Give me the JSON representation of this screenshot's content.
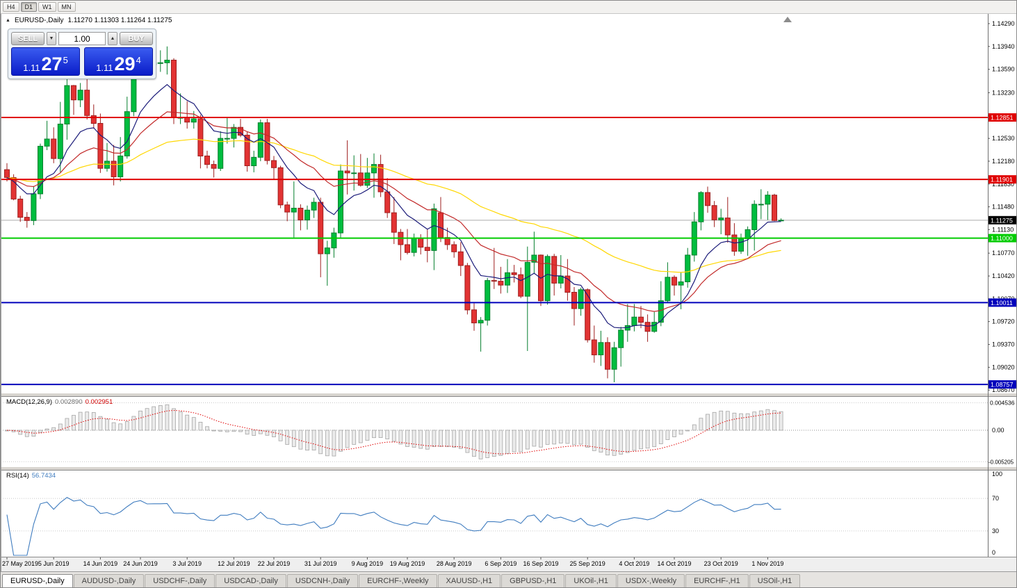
{
  "toolbar": {
    "timeframes": [
      {
        "label": "H4",
        "active": false
      },
      {
        "label": "D1",
        "active": true
      },
      {
        "label": "W1",
        "active": false
      },
      {
        "label": "MN",
        "active": false
      }
    ]
  },
  "overlay": {
    "collapse_glyph": "▲",
    "title": "EURUSD-,Daily",
    "ohlc": "1.11270 1.11303 1.11264 1.11275"
  },
  "trade_panel": {
    "sell_label": "SELL",
    "buy_label": "BUY",
    "volume": "1.00",
    "volume_down_glyph": "▼",
    "volume_up_glyph": "▲",
    "bid": {
      "prefix": "1.11",
      "pips": "27",
      "frac": "5"
    },
    "ask": {
      "prefix": "1.11",
      "pips": "29",
      "frac": "4"
    }
  },
  "chart_data": {
    "type": "candlestick",
    "symbol": "EURUSD-",
    "timeframe": "Daily",
    "ohlc_current": {
      "open": "1.11270",
      "high": "1.11303",
      "low": "1.11264",
      "close": "1.11275"
    },
    "y_axis": {
      "ticks": [
        "1.14290",
        "1.13940",
        "1.13590",
        "1.13230",
        "1.12880",
        "1.12530",
        "1.12180",
        "1.11830",
        "1.11480",
        "1.11130",
        "1.10770",
        "1.10420",
        "1.10070",
        "1.09720",
        "1.09370",
        "1.09020",
        "1.08670"
      ]
    },
    "x_axis": {
      "labels": [
        {
          "i": 0,
          "t": "27 May 2019"
        },
        {
          "i": 7,
          "t": "5 Jun 2019"
        },
        {
          "i": 14,
          "t": "14 Jun 2019"
        },
        {
          "i": 20,
          "t": "24 Jun 2019"
        },
        {
          "i": 27,
          "t": "3 Jul 2019"
        },
        {
          "i": 34,
          "t": "12 Jul 2019"
        },
        {
          "i": 40,
          "t": "22 Jul 2019"
        },
        {
          "i": 47,
          "t": "31 Jul 2019"
        },
        {
          "i": 54,
          "t": "9 Aug 2019"
        },
        {
          "i": 60,
          "t": "19 Aug 2019"
        },
        {
          "i": 67,
          "t": "28 Aug 2019"
        },
        {
          "i": 74,
          "t": "6 Sep 2019"
        },
        {
          "i": 80,
          "t": "16 Sep 2019"
        },
        {
          "i": 87,
          "t": "25 Sep 2019"
        },
        {
          "i": 94,
          "t": "4 Oct 2019"
        },
        {
          "i": 100,
          "t": "14 Oct 2019"
        },
        {
          "i": 107,
          "t": "23 Oct 2019"
        },
        {
          "i": 114,
          "t": "1 Nov 2019"
        }
      ]
    },
    "hlines": [
      {
        "price": 1.12851,
        "label": "1.12851",
        "color": "#e00000",
        "width": 2
      },
      {
        "price": 1.11901,
        "label": "1.11901",
        "color": "#e00000",
        "width": 2
      },
      {
        "price": 1.11,
        "label": "1.11000",
        "color": "#00cc00",
        "width": 2
      },
      {
        "price": 1.10011,
        "label": "1.10011",
        "color": "#0000bb",
        "width": 2
      },
      {
        "price": 1.08757,
        "label": "1.08757",
        "color": "#0000bb",
        "width": 2
      }
    ],
    "bid_line": {
      "price": 1.11275,
      "label": "1.11275",
      "line_color": "#ababab",
      "badge_bg": "#000000",
      "badge_fg": "#ffffff"
    },
    "candle_colors": {
      "up_fill": "#00bd3f",
      "up_stroke": "#057f2d",
      "down_fill": "#e23333",
      "down_stroke": "#9e1f1f"
    },
    "moving_averages": [
      {
        "period": 55,
        "color": "#ffd700",
        "name": "ma-slow-yellow"
      },
      {
        "period": 22,
        "color": "#c22a2a",
        "name": "ma-mid-red"
      },
      {
        "period": 10,
        "color": "#1c1c7a",
        "name": "ma-fast-navy"
      }
    ],
    "candles": [
      [
        1.1205,
        1.1215,
        1.1187,
        1.1193
      ],
      [
        1.1193,
        1.1198,
        1.1158,
        1.116
      ],
      [
        1.116,
        1.1165,
        1.1125,
        1.1132
      ],
      [
        1.1132,
        1.114,
        1.1116,
        1.1127
      ],
      [
        1.1127,
        1.118,
        1.112,
        1.1168
      ],
      [
        1.1168,
        1.1245,
        1.116,
        1.1241
      ],
      [
        1.1241,
        1.128,
        1.1235,
        1.1252
      ],
      [
        1.1252,
        1.127,
        1.1215,
        1.1222
      ],
      [
        1.1222,
        1.1309,
        1.1201,
        1.1275
      ],
      [
        1.1275,
        1.1348,
        1.1251,
        1.1334
      ],
      [
        1.1334,
        1.1335,
        1.1289,
        1.1312
      ],
      [
        1.1312,
        1.1338,
        1.1301,
        1.1327
      ],
      [
        1.1327,
        1.1344,
        1.1282,
        1.1288
      ],
      [
        1.1288,
        1.1305,
        1.1268,
        1.1276
      ],
      [
        1.1276,
        1.1291,
        1.12,
        1.1207
      ],
      [
        1.1207,
        1.1246,
        1.1202,
        1.1218
      ],
      [
        1.1218,
        1.1243,
        1.1181,
        1.1194
      ],
      [
        1.1194,
        1.1255,
        1.1187,
        1.1226
      ],
      [
        1.1226,
        1.1317,
        1.1222,
        1.1294
      ],
      [
        1.1294,
        1.1378,
        1.1287,
        1.1369
      ],
      [
        1.1369,
        1.14,
        1.1366,
        1.1398
      ],
      [
        1.1398,
        1.1403,
        1.1344,
        1.1366
      ],
      [
        1.1366,
        1.1391,
        1.1348,
        1.1369
      ],
      [
        1.1369,
        1.1388,
        1.1355,
        1.1369
      ],
      [
        1.1369,
        1.1394,
        1.1351,
        1.1373
      ],
      [
        1.1373,
        1.1376,
        1.1275,
        1.1285
      ],
      [
        1.1285,
        1.1322,
        1.1275,
        1.1285
      ],
      [
        1.1285,
        1.131,
        1.1268,
        1.1278
      ],
      [
        1.1278,
        1.1295,
        1.1268,
        1.1283
      ],
      [
        1.1283,
        1.1289,
        1.1207,
        1.1226
      ],
      [
        1.1226,
        1.1234,
        1.1207,
        1.1213
      ],
      [
        1.1213,
        1.1219,
        1.1193,
        1.1207
      ],
      [
        1.1207,
        1.1264,
        1.1203,
        1.1253
      ],
      [
        1.1253,
        1.1286,
        1.1245,
        1.1253
      ],
      [
        1.1253,
        1.1275,
        1.1239,
        1.127
      ],
      [
        1.127,
        1.1283,
        1.1255,
        1.1258
      ],
      [
        1.1258,
        1.1263,
        1.1202,
        1.1211
      ],
      [
        1.1211,
        1.1234,
        1.1201,
        1.1224
      ],
      [
        1.1224,
        1.1282,
        1.1218,
        1.1277
      ],
      [
        1.1277,
        1.1283,
        1.1213,
        1.1219
      ],
      [
        1.1219,
        1.1226,
        1.119,
        1.1208
      ],
      [
        1.1208,
        1.1211,
        1.1146,
        1.1151
      ],
      [
        1.1151,
        1.1156,
        1.1126,
        1.114
      ],
      [
        1.114,
        1.1187,
        1.1101,
        1.1146
      ],
      [
        1.1146,
        1.1152,
        1.1112,
        1.1128
      ],
      [
        1.1128,
        1.115,
        1.1113,
        1.1143
      ],
      [
        1.1143,
        1.1162,
        1.1131,
        1.1155
      ],
      [
        1.1155,
        1.1162,
        1.104,
        1.1076
      ],
      [
        1.1076,
        1.1096,
        1.1027,
        1.1085
      ],
      [
        1.1085,
        1.1116,
        1.107,
        1.1108
      ],
      [
        1.1108,
        1.1213,
        1.1101,
        1.1203
      ],
      [
        1.1203,
        1.125,
        1.1167,
        1.12
      ],
      [
        1.12,
        1.1227,
        1.1173,
        1.12
      ],
      [
        1.12,
        1.1229,
        1.1179,
        1.1181
      ],
      [
        1.1181,
        1.1223,
        1.1177,
        1.12
      ],
      [
        1.12,
        1.123,
        1.1162,
        1.1213
      ],
      [
        1.1213,
        1.1228,
        1.1163,
        1.1171
      ],
      [
        1.1171,
        1.1192,
        1.1131,
        1.1139
      ],
      [
        1.1139,
        1.1163,
        1.1091,
        1.1109
      ],
      [
        1.1109,
        1.1114,
        1.1066,
        1.109
      ],
      [
        1.109,
        1.1114,
        1.1075,
        1.1078
      ],
      [
        1.1078,
        1.1107,
        1.1072,
        1.11
      ],
      [
        1.11,
        1.1106,
        1.1075,
        1.1086
      ],
      [
        1.1086,
        1.1113,
        1.1063,
        1.1081
      ],
      [
        1.1081,
        1.1153,
        1.1051,
        1.1145
      ],
      [
        1.1139,
        1.1163,
        1.1094,
        1.1101
      ],
      [
        1.1101,
        1.1116,
        1.1082,
        1.109
      ],
      [
        1.109,
        1.1095,
        1.107,
        1.1079
      ],
      [
        1.1079,
        1.1094,
        1.1042,
        1.1058
      ],
      [
        1.1058,
        1.1062,
        1.0983,
        1.099
      ],
      [
        1.099,
        1.1,
        1.0958,
        1.097
      ],
      [
        1.097,
        1.0979,
        1.0926,
        1.0974
      ],
      [
        1.0974,
        1.1039,
        1.0966,
        1.1035
      ],
      [
        1.1035,
        1.1085,
        1.1022,
        1.1034
      ],
      [
        1.1034,
        1.1056,
        1.1015,
        1.1028
      ],
      [
        1.1028,
        1.1068,
        1.1016,
        1.1047
      ],
      [
        1.1047,
        1.1059,
        1.1032,
        1.1044
      ],
      [
        1.1044,
        1.1055,
        1.1008,
        1.1011
      ],
      [
        1.1011,
        1.1087,
        1.0927,
        1.1063
      ],
      [
        1.1063,
        1.111,
        1.1045,
        1.1074
      ],
      [
        1.1074,
        1.1075,
        1.0996,
        1.1004
      ],
      [
        1.1004,
        1.1075,
        1.0998,
        1.1072
      ],
      [
        1.1072,
        1.1076,
        1.1012,
        1.1031
      ],
      [
        1.1031,
        1.1074,
        1.1023,
        1.1042
      ],
      [
        1.1042,
        1.1068,
        1.1004,
        1.1017
      ],
      [
        1.1017,
        1.1025,
        1.0966,
        1.0992
      ],
      [
        1.0992,
        1.1024,
        1.0981,
        1.1021
      ],
      [
        1.1021,
        1.1023,
        1.094,
        1.0944
      ],
      [
        1.0944,
        1.0966,
        1.0909,
        1.0921
      ],
      [
        1.0921,
        1.0958,
        1.0904,
        1.094
      ],
      [
        1.094,
        1.0948,
        1.0885,
        1.0899
      ],
      [
        1.0899,
        1.0941,
        1.0879,
        1.0932
      ],
      [
        1.0932,
        1.0964,
        1.0903,
        1.0959
      ],
      [
        1.0959,
        1.0999,
        1.0941,
        1.0966
      ],
      [
        1.0966,
        1.0999,
        1.0957,
        1.0979
      ],
      [
        1.0979,
        1.0996,
        1.0962,
        1.0971
      ],
      [
        1.0971,
        1.0983,
        1.0941,
        1.0957
      ],
      [
        1.0957,
        1.0987,
        1.0955,
        1.0971
      ],
      [
        1.0971,
        1.1034,
        1.0965,
        1.1004
      ],
      [
        1.1004,
        1.1063,
        1.1002,
        1.104
      ],
      [
        1.104,
        1.1043,
        1.1012,
        1.1028
      ],
      [
        1.1028,
        1.1047,
        1.0991,
        1.1033
      ],
      [
        1.1033,
        1.1085,
        1.1024,
        1.1074
      ],
      [
        1.1074,
        1.114,
        1.1064,
        1.1125
      ],
      [
        1.1125,
        1.1172,
        1.1112,
        1.117
      ],
      [
        1.117,
        1.1179,
        1.1139,
        1.115
      ],
      [
        1.115,
        1.1157,
        1.1117,
        1.1128
      ],
      [
        1.1128,
        1.1145,
        1.1106,
        1.1131
      ],
      [
        1.1131,
        1.1163,
        1.1093,
        1.1105
      ],
      [
        1.1105,
        1.1123,
        1.1073,
        1.108
      ],
      [
        1.108,
        1.1107,
        1.1076,
        1.1099
      ],
      [
        1.1099,
        1.1118,
        1.1073,
        1.1113
      ],
      [
        1.1113,
        1.1158,
        1.1081,
        1.1152
      ],
      [
        1.1152,
        1.1175,
        1.1129,
        1.1152
      ],
      [
        1.1152,
        1.1172,
        1.1128,
        1.1166
      ],
      [
        1.1166,
        1.1168,
        1.1126,
        1.1127
      ],
      [
        1.1127,
        1.11303,
        1.11264,
        1.11275
      ]
    ],
    "macd": {
      "label": "MACD(12,26,9)",
      "value": "0.002890",
      "signal_value": "0.002951",
      "fast": 12,
      "slow": 26,
      "signal_period": 9,
      "scale_labels": [
        "0.004536",
        "0.00",
        "-0.005205"
      ],
      "scale_max": 0.004536,
      "scale_min": -0.005205,
      "hist_fill": "#ebebeb",
      "hist_stroke": "#a6a6a6",
      "signal_color": "#e00000"
    },
    "rsi": {
      "label": "RSI(14)",
      "value": "56.7434",
      "period": 14,
      "line_color": "#3f7cbf",
      "levels": [
        70,
        30
      ],
      "scale_labels": [
        "100",
        "70",
        "30",
        "0"
      ]
    }
  },
  "tabs": [
    {
      "label": "EURUSD-,Daily",
      "active": true
    },
    {
      "label": "AUDUSD-,Daily",
      "active": false
    },
    {
      "label": "USDCHF-,Daily",
      "active": false
    },
    {
      "label": "USDCAD-,Daily",
      "active": false
    },
    {
      "label": "USDCNH-,Daily",
      "active": false
    },
    {
      "label": "EURCHF-,Weekly",
      "active": false
    },
    {
      "label": "XAUUSD-,H1",
      "active": false
    },
    {
      "label": "GBPUSD-,H1",
      "active": false
    },
    {
      "label": "UKOil-,H1",
      "active": false
    },
    {
      "label": "USDX-,Weekly",
      "active": false
    },
    {
      "label": "EURCHF-,H1",
      "active": false
    },
    {
      "label": "USOil-,H1",
      "active": false
    }
  ]
}
